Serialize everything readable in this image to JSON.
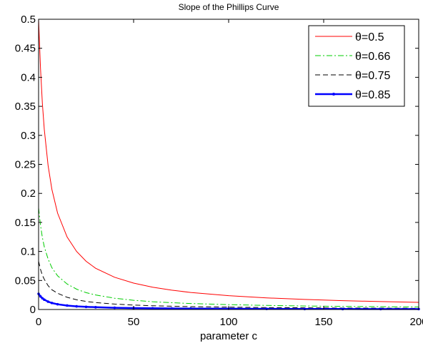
{
  "chart_data": {
    "type": "line",
    "title": "Slope of the Phillips Curve",
    "xlabel": "parameter c",
    "ylabel": "",
    "xlim": [
      0,
      200
    ],
    "ylim": [
      0,
      0.5
    ],
    "xticks": [
      "0",
      "50",
      "100",
      "150",
      "200"
    ],
    "yticks": [
      "0",
      "0.05",
      "0.1",
      "0.15",
      "0.2",
      "0.25",
      "0.3",
      "0.35",
      "0.4",
      "0.45",
      "0.5"
    ],
    "grid": false,
    "legend_position": "top-right",
    "x": [
      0,
      1,
      2,
      3,
      5,
      7,
      10,
      15,
      20,
      25,
      30,
      40,
      50,
      60,
      70,
      80,
      100,
      120,
      140,
      160,
      180,
      200
    ],
    "series": [
      {
        "name": "θ=0.5",
        "color": "#ff0000",
        "style": "solid",
        "values": [
          0.5,
          0.415,
          0.355,
          0.31,
          0.248,
          0.207,
          0.166,
          0.125,
          0.1,
          0.083,
          0.071,
          0.0555,
          0.0454,
          0.0384,
          0.0333,
          0.0294,
          0.0238,
          0.02,
          0.0173,
          0.0152,
          0.0136,
          0.0123
        ]
      },
      {
        "name": "θ=0.66",
        "color": "#00cc00",
        "style": "dashdot",
        "values": [
          0.175,
          0.145,
          0.124,
          0.108,
          0.087,
          0.072,
          0.058,
          0.044,
          0.035,
          0.029,
          0.025,
          0.0194,
          0.0159,
          0.0134,
          0.0117,
          0.0103,
          0.0083,
          0.007,
          0.006,
          0.0053,
          0.0048,
          0.0043
        ]
      },
      {
        "name": "θ=0.75",
        "color": "#000000",
        "style": "dashed",
        "values": [
          0.083,
          0.069,
          0.059,
          0.052,
          0.041,
          0.034,
          0.028,
          0.021,
          0.0167,
          0.0139,
          0.0119,
          0.0093,
          0.0076,
          0.0064,
          0.0056,
          0.0049,
          0.004,
          0.0033,
          0.0029,
          0.0025,
          0.0023,
          0.002
        ]
      },
      {
        "name": "θ=0.85",
        "color": "#0000ff",
        "style": "solid-dots",
        "values": [
          0.027,
          0.0225,
          0.0193,
          0.0169,
          0.0135,
          0.0112,
          0.009,
          0.0068,
          0.0054,
          0.0045,
          0.0039,
          0.003,
          0.0025,
          0.0021,
          0.0018,
          0.0016,
          0.0013,
          0.0011,
          0.0009,
          0.0008,
          0.0007,
          0.0007
        ]
      }
    ]
  }
}
